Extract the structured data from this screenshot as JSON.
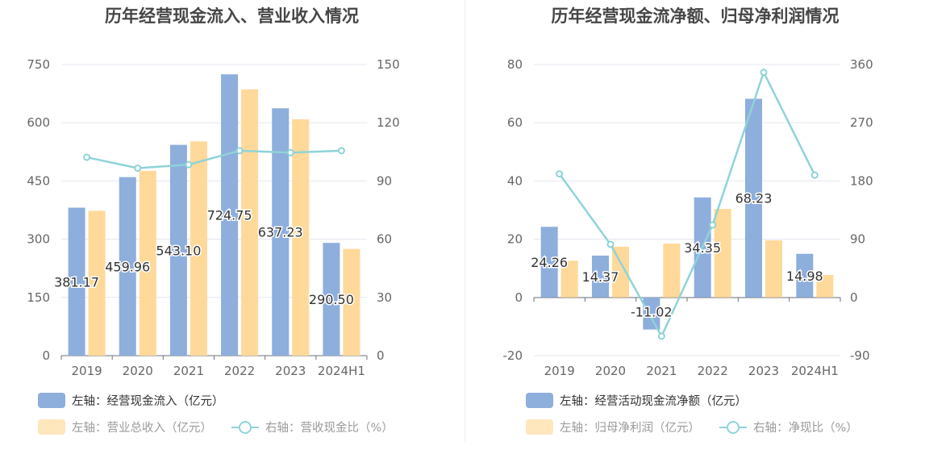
{
  "chart_data": [
    {
      "type": "bar",
      "title": "历年经营现金流入、营业收入情况",
      "categories": [
        "2019",
        "2020",
        "2021",
        "2022",
        "2023",
        "2024H1"
      ],
      "y_left": {
        "ticks": [
          "0",
          "150",
          "300",
          "450",
          "600",
          "750"
        ],
        "ylim": [
          0,
          750
        ]
      },
      "y_right": {
        "ticks": [
          "0",
          "30",
          "60",
          "90",
          "120",
          "150"
        ],
        "ylim": [
          0,
          150
        ]
      },
      "grid": true,
      "series": [
        {
          "name": "左轴：经营现金流入（亿元）",
          "axis": "left",
          "type": "bar",
          "values": [
            381.17,
            459.96,
            543.1,
            724.75,
            637.23,
            290.5
          ],
          "labels": [
            "381.17",
            "459.96",
            "543.10",
            "724.75",
            "637.23",
            "290.50"
          ],
          "color": "#8eaedc"
        },
        {
          "name": "左轴：营业总收入（亿元）",
          "axis": "left",
          "type": "bar",
          "values": [
            373,
            476,
            552,
            686,
            609,
            275
          ],
          "color": "#ffd99a"
        },
        {
          "name": "右轴：营收现金比（%）",
          "axis": "right",
          "type": "line",
          "values": [
            102.2,
            96.6,
            98.4,
            105.6,
            104.6,
            105.6
          ],
          "color": "#8fd3d8"
        }
      ],
      "legend": {
        "placement": "bottom-left",
        "rows": [
          [
            "左轴：经营现金流入（亿元）"
          ],
          [
            "左轴：营业总收入（亿元）",
            "右轴：营收现金比（%）"
          ]
        ]
      }
    },
    {
      "type": "bar",
      "title": "历年经营现金流净额、归母净利润情况",
      "categories": [
        "2019",
        "2020",
        "2021",
        "2022",
        "2023",
        "2024H1"
      ],
      "y_left": {
        "ticks": [
          "-20",
          "0",
          "20",
          "40",
          "60",
          "80"
        ],
        "ylim": [
          -20,
          80
        ]
      },
      "y_right": {
        "ticks": [
          "-90",
          "0",
          "90",
          "180",
          "270",
          "360"
        ],
        "ylim": [
          -90,
          360
        ]
      },
      "grid": true,
      "series": [
        {
          "name": "左轴：经营活动现金流净额（亿元）",
          "axis": "left",
          "type": "bar",
          "values": [
            24.26,
            14.37,
            -11.02,
            34.35,
            68.23,
            14.98
          ],
          "labels": [
            "24.26",
            "14.37",
            "-11.02",
            "34.35",
            "68.23",
            "14.98"
          ],
          "color": "#8eaedc"
        },
        {
          "name": "左轴：归母净利润（亿元）",
          "axis": "left",
          "type": "bar",
          "values": [
            12.6,
            17.4,
            18.5,
            30.4,
            19.6,
            7.7
          ],
          "color": "#ffd99a"
        },
        {
          "name": "右轴：净现比（%）",
          "axis": "right",
          "type": "line",
          "values": [
            191,
            82,
            -60,
            112,
            348,
            189
          ],
          "color": "#8fd3d8"
        }
      ],
      "legend": {
        "placement": "bottom-left",
        "rows": [
          [
            "左轴：经营活动现金流净额（亿元）"
          ],
          [
            "左轴：归母净利润（亿元）",
            "右轴：净现比（%）"
          ]
        ]
      }
    }
  ]
}
